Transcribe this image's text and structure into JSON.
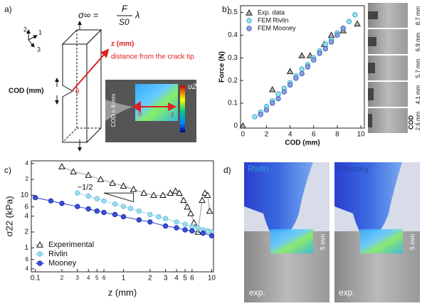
{
  "panel_a": {
    "label": "a)",
    "axis_labels": [
      "2",
      "1",
      "3"
    ],
    "formula": {
      "lhs": "σ∞ =",
      "numerator": "F",
      "denominator": "S0",
      "factor": "λ"
    },
    "z_label": "z (mm)",
    "z_caption": "distance from the crack tip",
    "cod_label": "COD (mm)",
    "origin": "0",
    "inset": {
      "cod": "COD = 6 mm",
      "colorbar": "υ22",
      "origin": "0",
      "z": "z"
    }
  },
  "panel_b": {
    "label": "b)",
    "image_labels": [
      "8.7 mm",
      "6.9 mm",
      "5.7 mm",
      "4.1 mm",
      "2.6 mm"
    ],
    "image_caption": "COD"
  },
  "panel_c": {
    "label": "c)"
  },
  "panel_d": {
    "label": "d)",
    "titles": [
      "Rivlin",
      "Mooney"
    ],
    "scale": [
      "5 mm",
      "5 mm"
    ],
    "captions": [
      "exp.",
      "exp."
    ]
  },
  "chart_data": [
    {
      "type": "scatter",
      "xlabel": "COD (mm)",
      "ylabel": "Force (N)",
      "xlim": [
        -0.2,
        10.3
      ],
      "ylim": [
        -0.01,
        0.53
      ],
      "xticks": [
        0,
        2,
        4,
        6,
        8,
        10
      ],
      "yticks": [
        0,
        0.1,
        0.2,
        0.3,
        0.4,
        0.5
      ],
      "legend": "upper left",
      "series": [
        {
          "name": "Exp. data",
          "color": "#222222",
          "facecolor": "#b0b0b0",
          "marker": "triangle",
          "x": [
            0,
            2.5,
            4,
            5,
            5.7,
            6.9,
            7.5,
            8.5,
            9.7
          ],
          "values": [
            0,
            0.16,
            0.24,
            0.31,
            0.31,
            0.36,
            0.4,
            0.42,
            0.45
          ]
        },
        {
          "name": "FEM Rivlin",
          "color": "#3aa8c8",
          "facecolor": "#9be0f0",
          "marker": "circle",
          "x": [
            1,
            1.5,
            2,
            2.5,
            3,
            3.5,
            4,
            4.5,
            5,
            5.5,
            6,
            6.5,
            7,
            7.5,
            8,
            8.5,
            9,
            9.5
          ],
          "values": [
            0.04,
            0.06,
            0.085,
            0.11,
            0.14,
            0.165,
            0.19,
            0.22,
            0.25,
            0.27,
            0.3,
            0.33,
            0.36,
            0.38,
            0.41,
            0.43,
            0.46,
            0.49
          ]
        },
        {
          "name": "FEM Mooney",
          "color": "#4060b8",
          "facecolor": "#8aa4e0",
          "marker": "circle",
          "x": [
            1.5,
            2,
            2.5,
            3,
            3.5,
            4,
            4.5,
            5,
            5.5,
            6,
            6.5,
            7,
            7.5,
            8,
            8.5
          ],
          "values": [
            0.05,
            0.07,
            0.1,
            0.12,
            0.15,
            0.18,
            0.21,
            0.23,
            0.26,
            0.29,
            0.32,
            0.34,
            0.37,
            0.4,
            0.43
          ]
        }
      ]
    },
    {
      "type": "line",
      "xlabel": "z (mm)",
      "ylabel": "σ22 (kPa)",
      "xscale": "log",
      "yscale": "log",
      "xlim": [
        0.09,
        10.5
      ],
      "ylim": [
        0.35,
        45
      ],
      "xticks": [
        0.1,
        {
          "value": 0.2,
          "label": "2"
        },
        {
          "value": 0.3,
          "label": "3"
        },
        {
          "value": 0.4,
          "label": "4"
        },
        {
          "value": 0.5,
          "label": "5"
        },
        {
          "value": 0.6,
          "label": "6"
        },
        1,
        2,
        3,
        4,
        5,
        6,
        10
      ],
      "yticks": [
        {
          "value": 0.4,
          "label": "4"
        },
        {
          "value": 0.6,
          "label": "6"
        },
        1,
        2,
        4,
        6,
        10,
        {
          "value": 20,
          "label": "2"
        },
        {
          "value": 40,
          "label": "4"
        }
      ],
      "legend": "lower left",
      "annotation": "−1/2",
      "series": [
        {
          "name": "Experimental",
          "color": "#111111",
          "facecolor": "#ffffff",
          "linecolor": "#999999",
          "marker": "triangle",
          "x": [
            0.2,
            0.27,
            0.4,
            0.55,
            0.75,
            1,
            1.3,
            1.7,
            2.2,
            2.8,
            3.4,
            3.9,
            4.3,
            4.8,
            5.3,
            5.8,
            6.3,
            7,
            7.8,
            8.4,
            9,
            9.5
          ],
          "values": [
            35,
            28,
            24,
            20,
            17,
            15,
            13,
            11,
            10,
            10,
            11,
            12,
            11,
            8,
            6,
            4.5,
            3,
            2,
            8,
            11,
            10,
            5
          ]
        },
        {
          "name": "Rivlin",
          "color": "#6cc0dc",
          "facecolor": "#9fdcf0",
          "linecolor": "#8fd3ea",
          "marker": "circle",
          "x": [
            0.3,
            0.4,
            0.5,
            0.6,
            0.8,
            1,
            1.2,
            1.5,
            2,
            2.5,
            3,
            4,
            5,
            6,
            7,
            8,
            9,
            10
          ],
          "values": [
            11,
            9.6,
            8.6,
            7.8,
            6.8,
            6.1,
            5.6,
            5,
            4.3,
            3.9,
            3.6,
            3.1,
            2.8,
            2.5,
            2.4,
            2.2,
            2.1,
            2
          ]
        },
        {
          "name": "Mooney",
          "color": "#1f2fa8",
          "facecolor": "#3a50d8",
          "linecolor": "#2b3ec6",
          "marker": "circle",
          "x": [
            0.1,
            0.15,
            0.2,
            0.3,
            0.4,
            0.5,
            0.6,
            0.8,
            1,
            1.5,
            2,
            3,
            4,
            5,
            6,
            8,
            10
          ],
          "values": [
            9,
            7.8,
            7,
            6.1,
            5.5,
            5,
            4.7,
            4.3,
            3.9,
            3.4,
            3.1,
            2.6,
            2.4,
            2.2,
            2.1,
            1.9,
            1.7
          ]
        }
      ]
    }
  ]
}
